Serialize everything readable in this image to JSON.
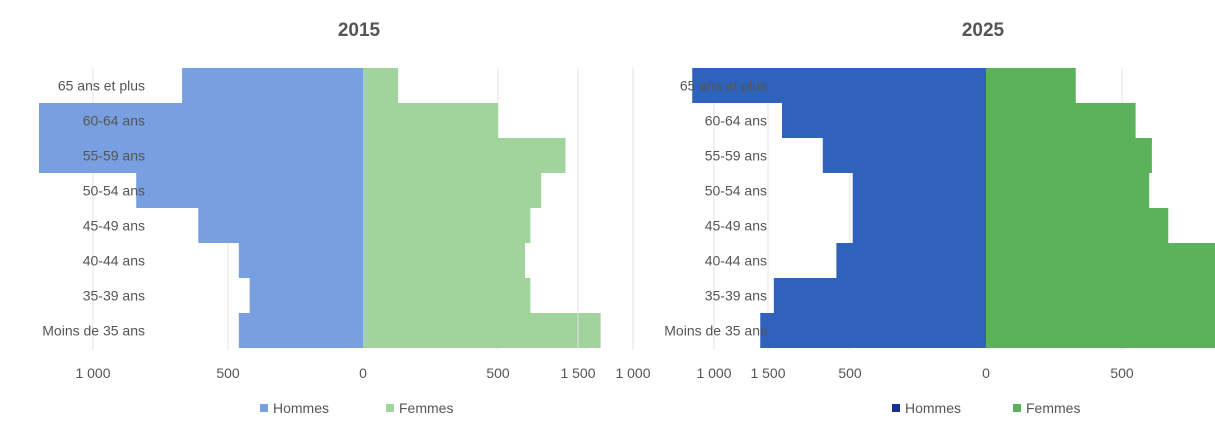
{
  "chart_data": [
    {
      "type": "bar",
      "orientation": "horizontal",
      "title": "2015",
      "categories": [
        "65 ans et plus",
        "60-64 ans",
        "55-59 ans",
        "50-54 ans",
        "45-49 ans",
        "40-44 ans",
        "35-39 ans",
        "Moins de 35 ans"
      ],
      "series": [
        {
          "name": "Hommes",
          "values": [
            670,
            1200,
            1200,
            840,
            610,
            460,
            420,
            460
          ],
          "color": "#789fdf"
        },
        {
          "name": "Femmes",
          "values": [
            130,
            500,
            750,
            660,
            620,
            600,
            620,
            880
          ],
          "color": "#a1d39c"
        }
      ],
      "xlim": [
        -1500,
        1500
      ],
      "xticks": [
        -1500,
        -1000,
        -500,
        0,
        500,
        1000,
        1500
      ],
      "xtick_labels": [
        "1 500",
        "1 000",
        "500",
        "0",
        "500",
        "1 000",
        "1 500"
      ],
      "grid": true,
      "legend": "bottom"
    },
    {
      "type": "bar",
      "orientation": "horizontal",
      "title": "2025",
      "categories": [
        "65 ans et plus",
        "60-64 ans",
        "55-59 ans",
        "50-54 ans",
        "45-49 ans",
        "40-44 ans",
        "35-39 ans",
        "Moins de 35 ans"
      ],
      "series": [
        {
          "name": "Hommes",
          "values": [
            1080,
            750,
            600,
            490,
            490,
            550,
            780,
            830
          ],
          "color": "#2f62bb"
        },
        {
          "name": "Femmes",
          "values": [
            330,
            550,
            610,
            600,
            670,
            910,
            1260,
            1350
          ],
          "color": "#5bb25a"
        }
      ],
      "legend_colors": [
        "#1c2f92",
        "#5bb25a"
      ],
      "xlim": [
        -1500,
        1500
      ],
      "xticks": [
        -1500,
        -1000,
        -500,
        0,
        500,
        1000,
        1500
      ],
      "xtick_labels": [
        "1 500",
        "1 000",
        "500",
        "0",
        "500",
        "1 000",
        "1 500"
      ],
      "grid": true,
      "legend": "bottom"
    }
  ]
}
